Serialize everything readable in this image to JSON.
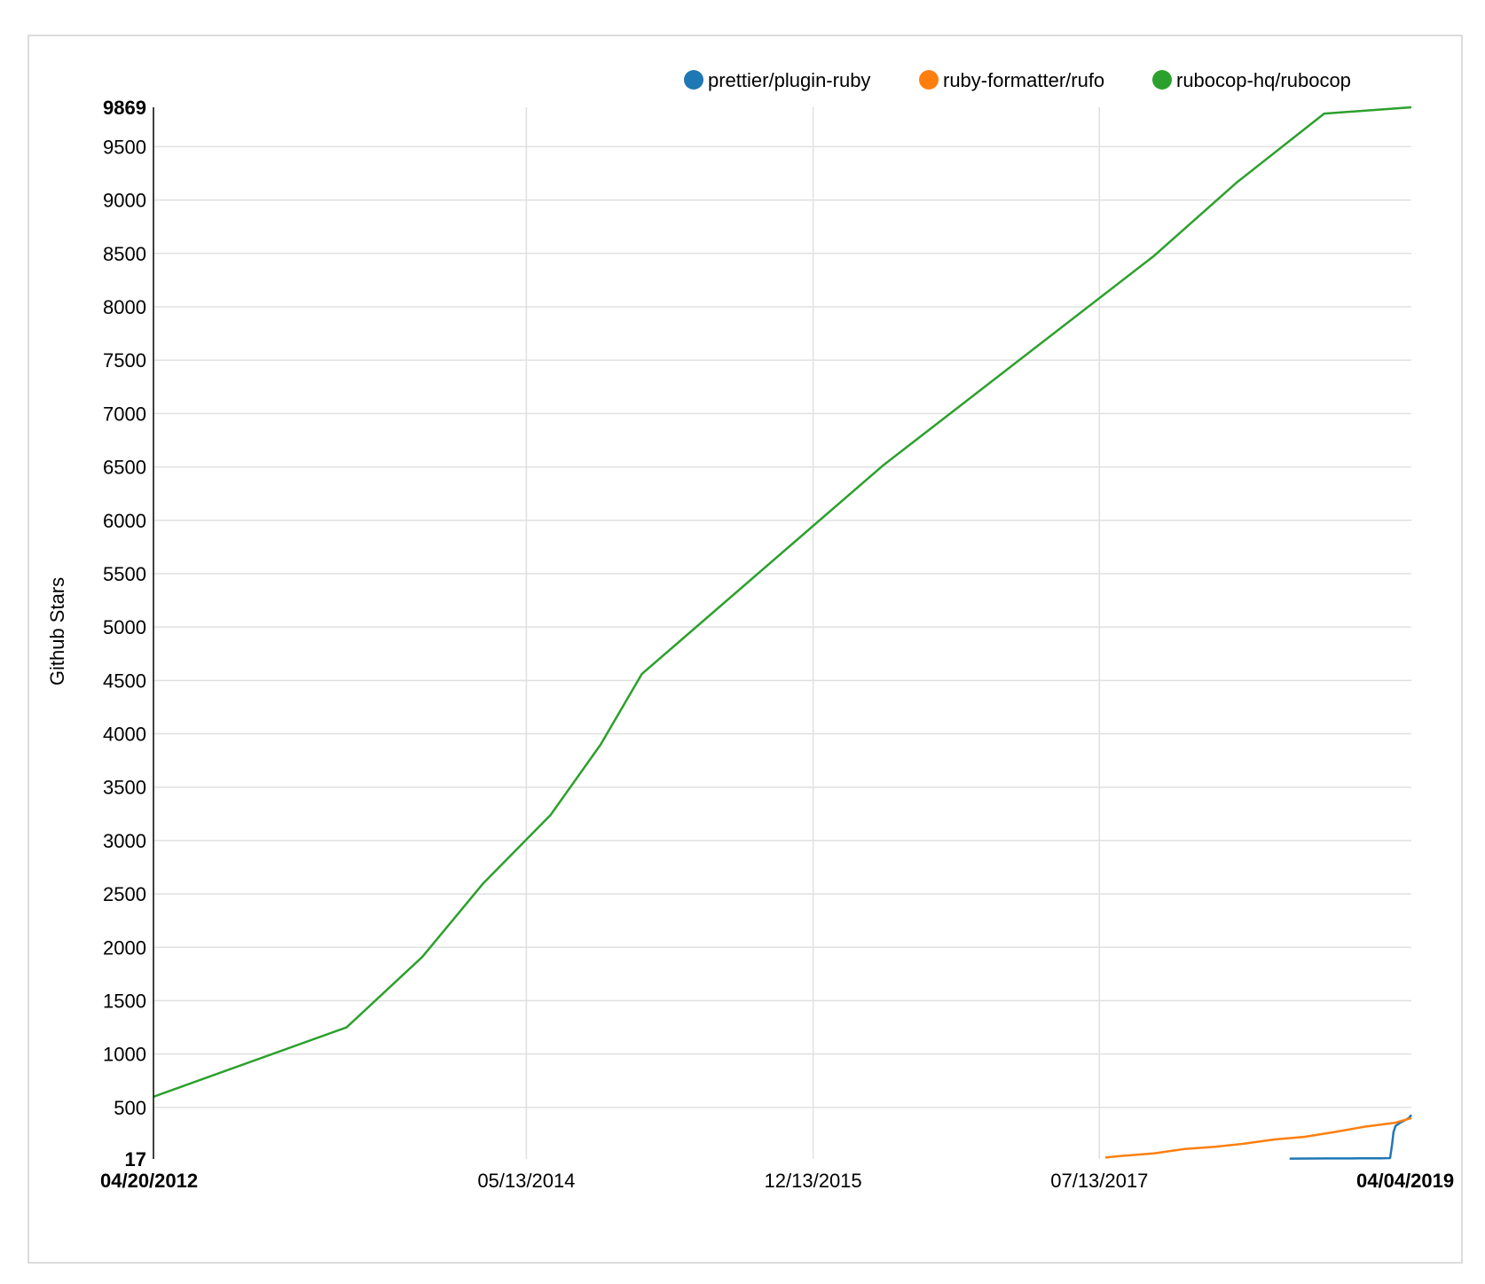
{
  "chart_data": {
    "type": "line",
    "ylabel": "Github Stars",
    "xlabel": "",
    "ylim": [
      17,
      9869
    ],
    "xlim": [
      "2012-04-20",
      "2019-04-04"
    ],
    "y_ticks": [
      "17",
      "500",
      "1000",
      "1500",
      "2000",
      "2500",
      "3000",
      "3500",
      "4000",
      "4500",
      "5000",
      "5500",
      "6000",
      "6500",
      "7000",
      "7500",
      "8000",
      "8500",
      "9000",
      "9500",
      "9869"
    ],
    "x_ticks": [
      "04/20/2012",
      "05/13/2014",
      "12/13/2015",
      "07/13/2017",
      "04/04/2019"
    ],
    "grid": true,
    "legend_position": "top-right",
    "series": [
      {
        "name": "prettier/plugin-ruby",
        "color": "#1f77b4",
        "points": [
          [
            "2018-08-01",
            20
          ],
          [
            "2018-10-15",
            22
          ],
          [
            "2018-12-20",
            23
          ],
          [
            "2019-02-01",
            24
          ],
          [
            "2019-02-20",
            25
          ],
          [
            "2019-02-24",
            150
          ],
          [
            "2019-02-27",
            270
          ],
          [
            "2019-03-03",
            325
          ],
          [
            "2019-03-10",
            350
          ],
          [
            "2019-03-20",
            375
          ],
          [
            "2019-03-30",
            400
          ],
          [
            "2019-04-04",
            430
          ]
        ]
      },
      {
        "name": "ruby-formatter/rufo",
        "color": "#ff7f0e",
        "points": [
          [
            "2017-07-25",
            30
          ],
          [
            "2017-09-01",
            48
          ],
          [
            "2017-11-01",
            70
          ],
          [
            "2018-01-01",
            110
          ],
          [
            "2018-03-01",
            130
          ],
          [
            "2018-05-01",
            160
          ],
          [
            "2018-07-01",
            200
          ],
          [
            "2018-09-01",
            225
          ],
          [
            "2018-11-01",
            270
          ],
          [
            "2019-01-01",
            320
          ],
          [
            "2019-03-01",
            355
          ],
          [
            "2019-04-04",
            400
          ]
        ]
      },
      {
        "name": "rubocop-hq/rubocop",
        "color": "#2ca02c",
        "points": [
          [
            "2012-04-20",
            600
          ],
          [
            "2013-05-15",
            1250
          ],
          [
            "2013-10-15",
            1910
          ],
          [
            "2014-02-15",
            2600
          ],
          [
            "2014-07-01",
            3240
          ],
          [
            "2014-10-10",
            3900
          ],
          [
            "2015-01-01",
            4560
          ],
          [
            "2016-05-01",
            6510
          ],
          [
            "2017-11-01",
            8480
          ],
          [
            "2018-04-15",
            9160
          ],
          [
            "2018-10-10",
            9810
          ],
          [
            "2019-04-04",
            9869
          ]
        ]
      }
    ]
  }
}
